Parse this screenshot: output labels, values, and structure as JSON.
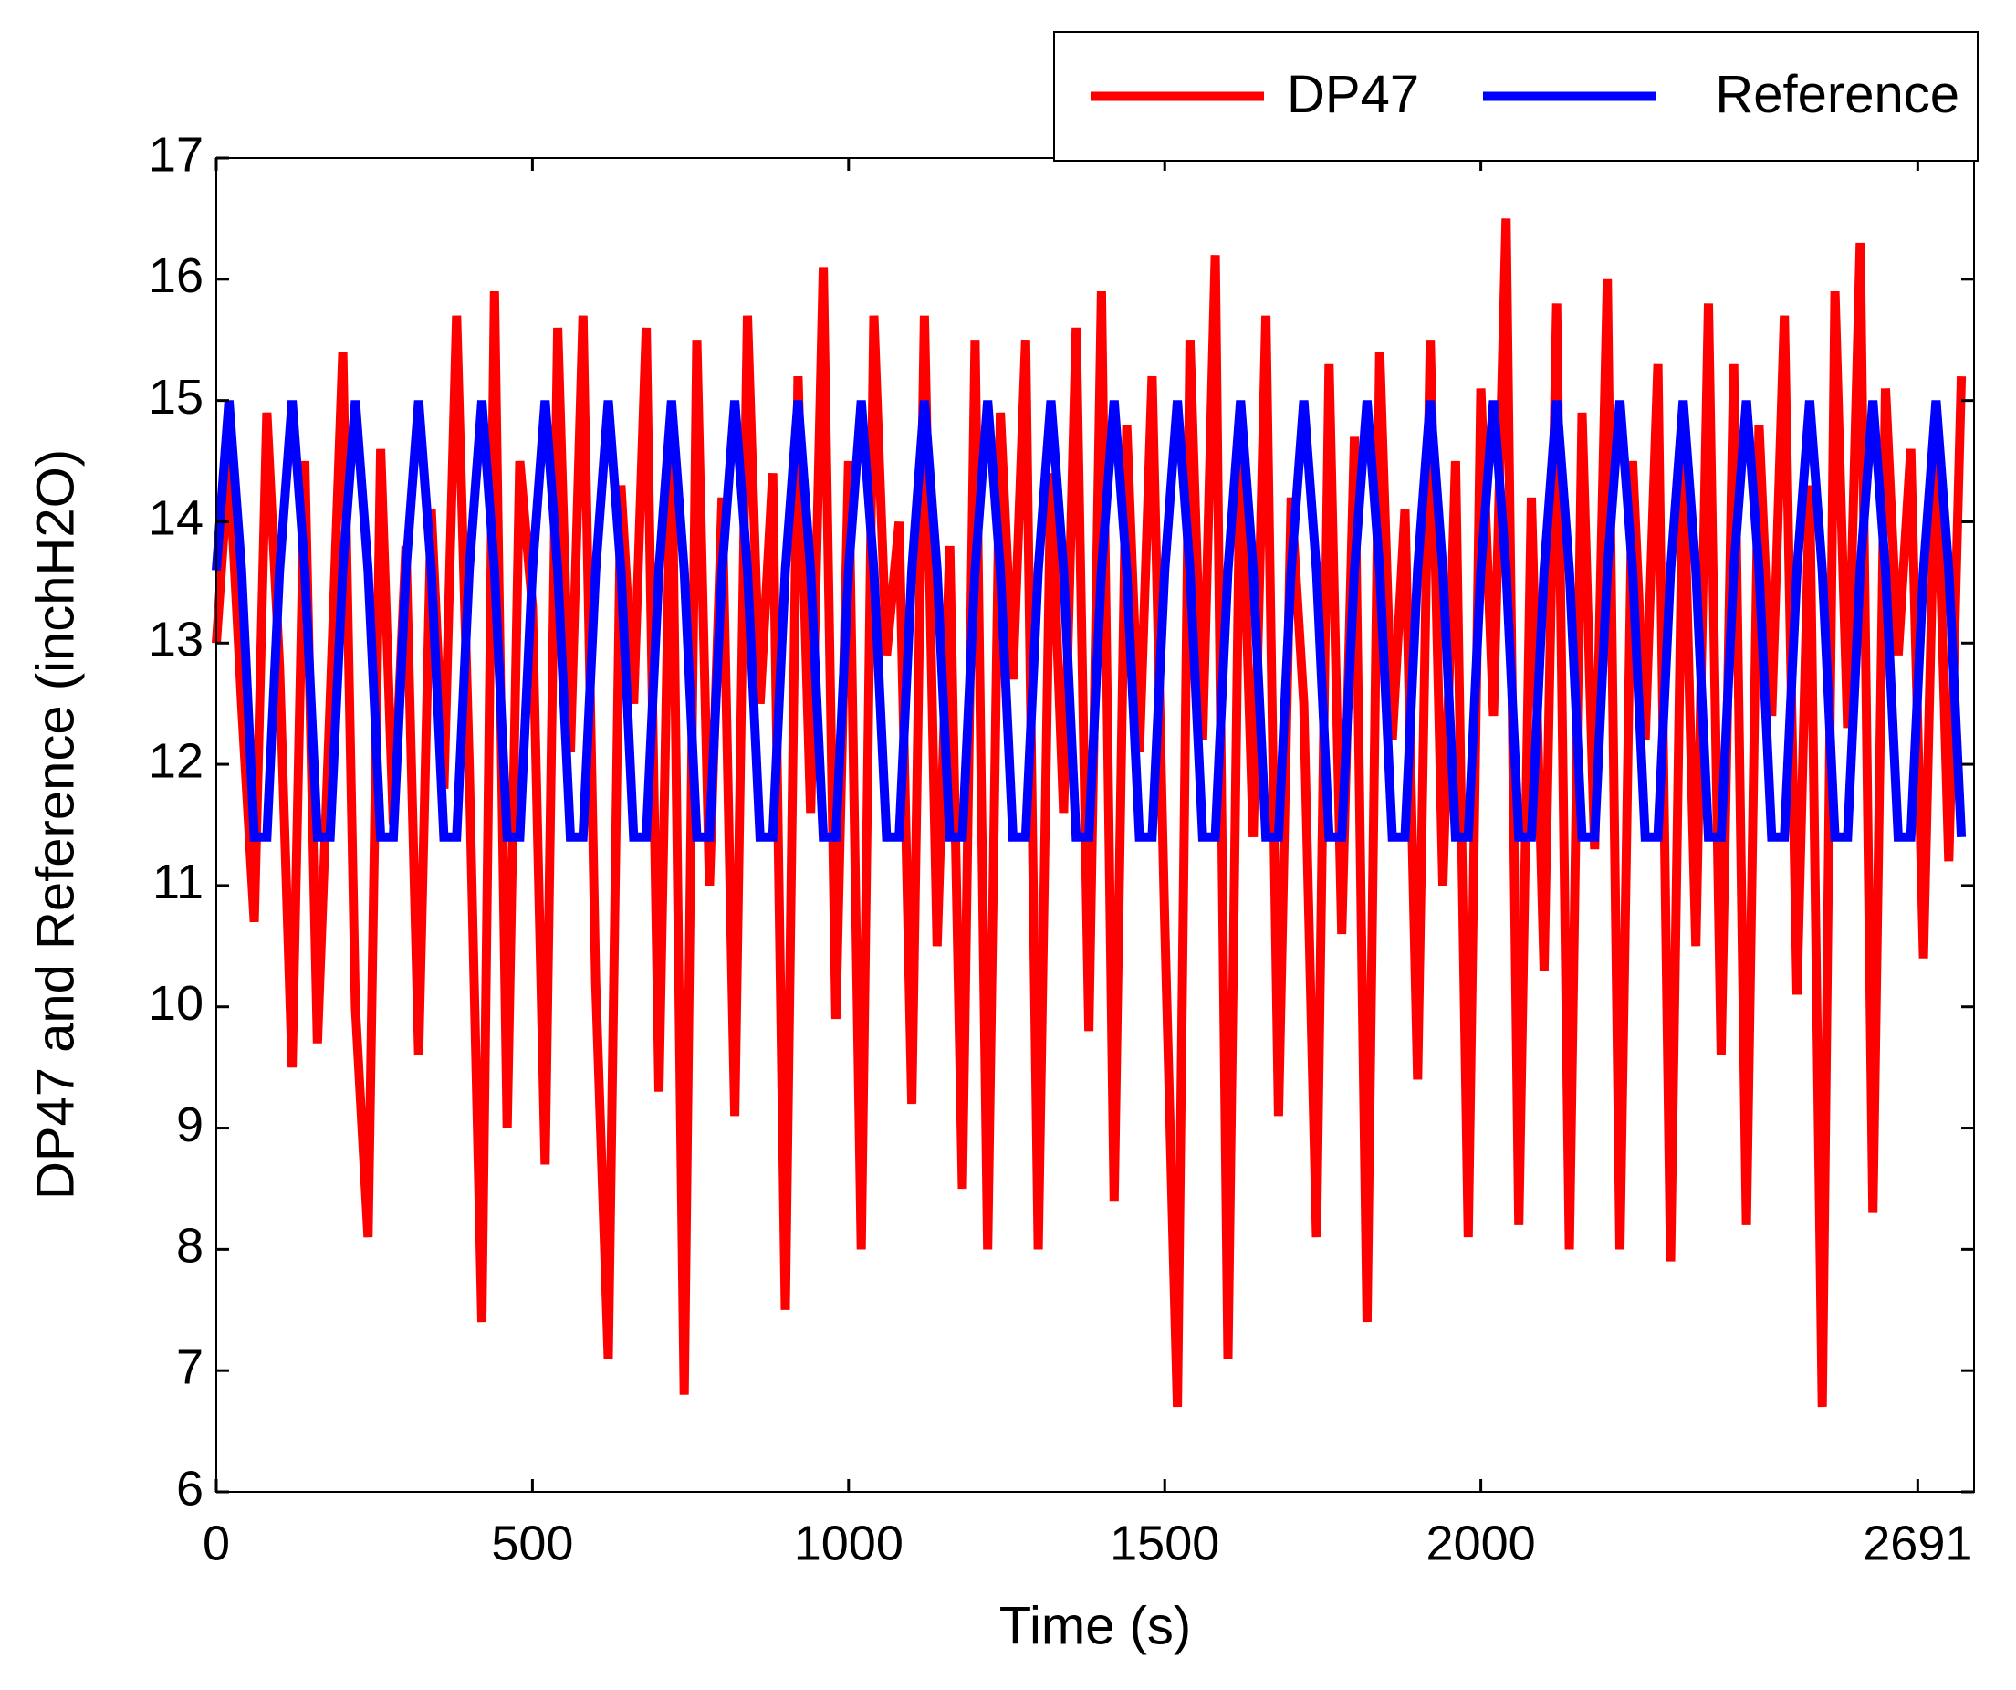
{
  "chart_data": {
    "type": "line",
    "xlabel": "Time (s)",
    "ylabel": "DP47 and Reference (inchH2O)",
    "x": [
      0,
      20,
      40,
      60,
      80,
      100,
      120,
      140,
      160,
      180,
      200,
      220,
      240,
      260,
      280,
      300,
      320,
      340,
      360,
      380,
      400,
      420,
      440,
      460,
      480,
      500,
      520,
      540,
      560,
      580,
      600,
      620,
      640,
      660,
      680,
      700,
      720,
      740,
      760,
      780,
      800,
      820,
      840,
      860,
      880,
      900,
      920,
      940,
      960,
      980,
      1000,
      1020,
      1040,
      1060,
      1080,
      1100,
      1120,
      1140,
      1160,
      1180,
      1200,
      1220,
      1240,
      1260,
      1280,
      1300,
      1320,
      1340,
      1360,
      1380,
      1400,
      1420,
      1440,
      1460,
      1480,
      1500,
      1520,
      1540,
      1560,
      1580,
      1600,
      1620,
      1640,
      1660,
      1680,
      1700,
      1720,
      1740,
      1760,
      1780,
      1800,
      1820,
      1840,
      1860,
      1880,
      1900,
      1920,
      1940,
      1960,
      1980,
      2000,
      2020,
      2040,
      2060,
      2080,
      2100,
      2120,
      2140,
      2160,
      2180,
      2200,
      2220,
      2240,
      2260,
      2280,
      2300,
      2320,
      2340,
      2360,
      2380,
      2400,
      2420,
      2440,
      2460,
      2480,
      2500,
      2520,
      2540,
      2560,
      2580,
      2600,
      2620,
      2640,
      2660,
      2680,
      2700,
      2720,
      2740,
      2760
    ],
    "series": [
      {
        "name": "DP47",
        "color": "#ff0000",
        "values": [
          13,
          14.5,
          12.5,
          10.7,
          14.9,
          12.8,
          9.5,
          14.5,
          9.7,
          12.5,
          15.4,
          10,
          8.1,
          14.6,
          11.5,
          13.8,
          9.6,
          14.1,
          11.8,
          15.7,
          12,
          7.4,
          15.9,
          9,
          14.5,
          13.3,
          8.7,
          15.6,
          12.1,
          15.7,
          10.2,
          7.1,
          14.3,
          12.5,
          15.6,
          9.3,
          14.9,
          6.8,
          15.5,
          11,
          14.2,
          9.1,
          15.7,
          12.5,
          14.4,
          7.5,
          15.2,
          11.6,
          16.1,
          9.9,
          14.5,
          8,
          15.7,
          12.9,
          14,
          9.2,
          15.7,
          10.5,
          13.8,
          8.5,
          15.5,
          8,
          14.9,
          12.7,
          15.5,
          8,
          14.4,
          11.6,
          15.6,
          9.8,
          15.9,
          8.4,
          14.8,
          12.1,
          15.2,
          10.7,
          6.7,
          15.5,
          12.2,
          16.2,
          7.1,
          14.8,
          11.4,
          15.7,
          9.1,
          14.2,
          12.5,
          8.1,
          15.3,
          10.6,
          14.7,
          7.4,
          15.4,
          12.2,
          14.1,
          9.4,
          15.5,
          11,
          14.5,
          8.1,
          15.1,
          12.4,
          16.5,
          8.2,
          14.2,
          10.3,
          15.8,
          8,
          14.9,
          11.3,
          16,
          8,
          14.5,
          12.2,
          15.3,
          7.9,
          14.6,
          10.5,
          15.8,
          9.6,
          15.3,
          8.2,
          14.8,
          12.4,
          15.7,
          10.1,
          14.3,
          6.7,
          15.9,
          12.3,
          16.3,
          8.3,
          15.1,
          12.9,
          14.6,
          10.4,
          14.9,
          11.2,
          15.2
        ]
      },
      {
        "name": "Reference",
        "color": "#0000ff",
        "values": [
          13.6,
          15,
          13.6,
          11.4,
          11.4,
          13.6,
          15,
          13.6,
          11.4,
          11.4,
          13.6,
          15,
          13.6,
          11.4,
          11.4,
          13.6,
          15,
          13.6,
          11.4,
          11.4,
          13.6,
          15,
          13.6,
          11.4,
          11.4,
          13.6,
          15,
          13.6,
          11.4,
          11.4,
          13.6,
          15,
          13.6,
          11.4,
          11.4,
          13.6,
          15,
          13.6,
          11.4,
          11.4,
          13.6,
          15,
          13.6,
          11.4,
          11.4,
          13.6,
          15,
          13.6,
          11.4,
          11.4,
          13.6,
          15,
          13.6,
          11.4,
          11.4,
          13.6,
          15,
          13.6,
          11.4,
          11.4,
          13.6,
          15,
          13.6,
          11.4,
          11.4,
          13.6,
          15,
          13.6,
          11.4,
          11.4,
          13.6,
          15,
          13.6,
          11.4,
          11.4,
          13.6,
          15,
          13.6,
          11.4,
          11.4,
          13.6,
          15,
          13.6,
          11.4,
          11.4,
          13.6,
          15,
          13.6,
          11.4,
          11.4,
          13.6,
          15,
          13.6,
          11.4,
          11.4,
          13.6,
          15,
          13.6,
          11.4,
          11.4,
          13.6,
          15,
          13.6,
          11.4,
          11.4,
          13.6,
          15,
          13.6,
          11.4,
          11.4,
          13.6,
          15,
          13.6,
          11.4,
          11.4,
          13.6,
          15,
          13.6,
          11.4,
          11.4,
          13.6,
          15,
          13.6,
          11.4,
          11.4,
          13.6,
          15,
          13.6,
          11.4,
          11.4,
          13.6,
          15,
          13.6,
          11.4,
          11.4,
          13.6,
          15,
          13.6,
          11.4
        ]
      }
    ],
    "xlim": [
      0,
      2780
    ],
    "xticks": [
      0,
      500,
      1000,
      1500,
      2000,
      2691
    ],
    "ylim": [
      6,
      17
    ],
    "yticks": [
      6,
      7,
      8,
      9,
      10,
      11,
      12,
      13,
      14,
      15,
      16,
      17
    ],
    "legend": "top-right"
  }
}
